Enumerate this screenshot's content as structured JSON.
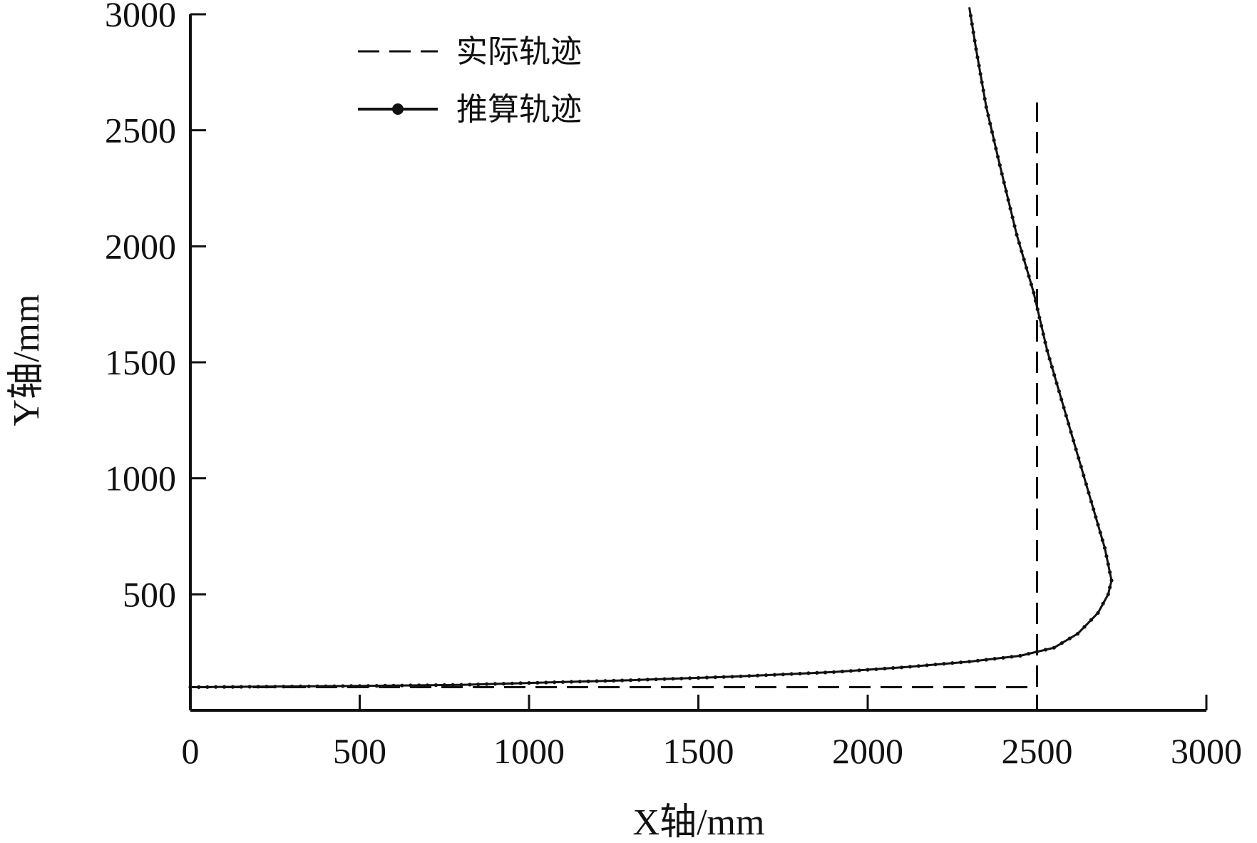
{
  "chart_data": {
    "type": "line",
    "xlabel": "X轴/mm",
    "ylabel": "Y轴/mm",
    "xlim": [
      0,
      3000
    ],
    "ylim": [
      0,
      3000
    ],
    "x_ticks": [
      "0",
      "500",
      "1000",
      "1500",
      "2000",
      "2500",
      "3000"
    ],
    "y_ticks": [
      "500",
      "1000",
      "1500",
      "2000",
      "2500",
      "3000"
    ],
    "grid": false,
    "legend_position": "top-left",
    "series": [
      {
        "name": "实际轨迹",
        "style": "dashed",
        "color": "#111111",
        "x": [
          0,
          2500,
          2500
        ],
        "y": [
          100,
          100,
          2620
        ]
      },
      {
        "name": "推算轨迹",
        "style": "solid-dotted",
        "color": "#111111",
        "x": [
          0,
          200,
          500,
          800,
          1000,
          1300,
          1600,
          1900,
          2100,
          2300,
          2450,
          2550,
          2620,
          2680,
          2710,
          2720,
          2700,
          2660,
          2600,
          2530,
          2490,
          2440,
          2390,
          2350,
          2320,
          2300
        ],
        "y": [
          100,
          102,
          105,
          110,
          118,
          130,
          145,
          165,
          185,
          210,
          235,
          270,
          330,
          420,
          500,
          560,
          700,
          900,
          1200,
          1550,
          1800,
          2050,
          2350,
          2600,
          2850,
          3030
        ]
      }
    ]
  }
}
